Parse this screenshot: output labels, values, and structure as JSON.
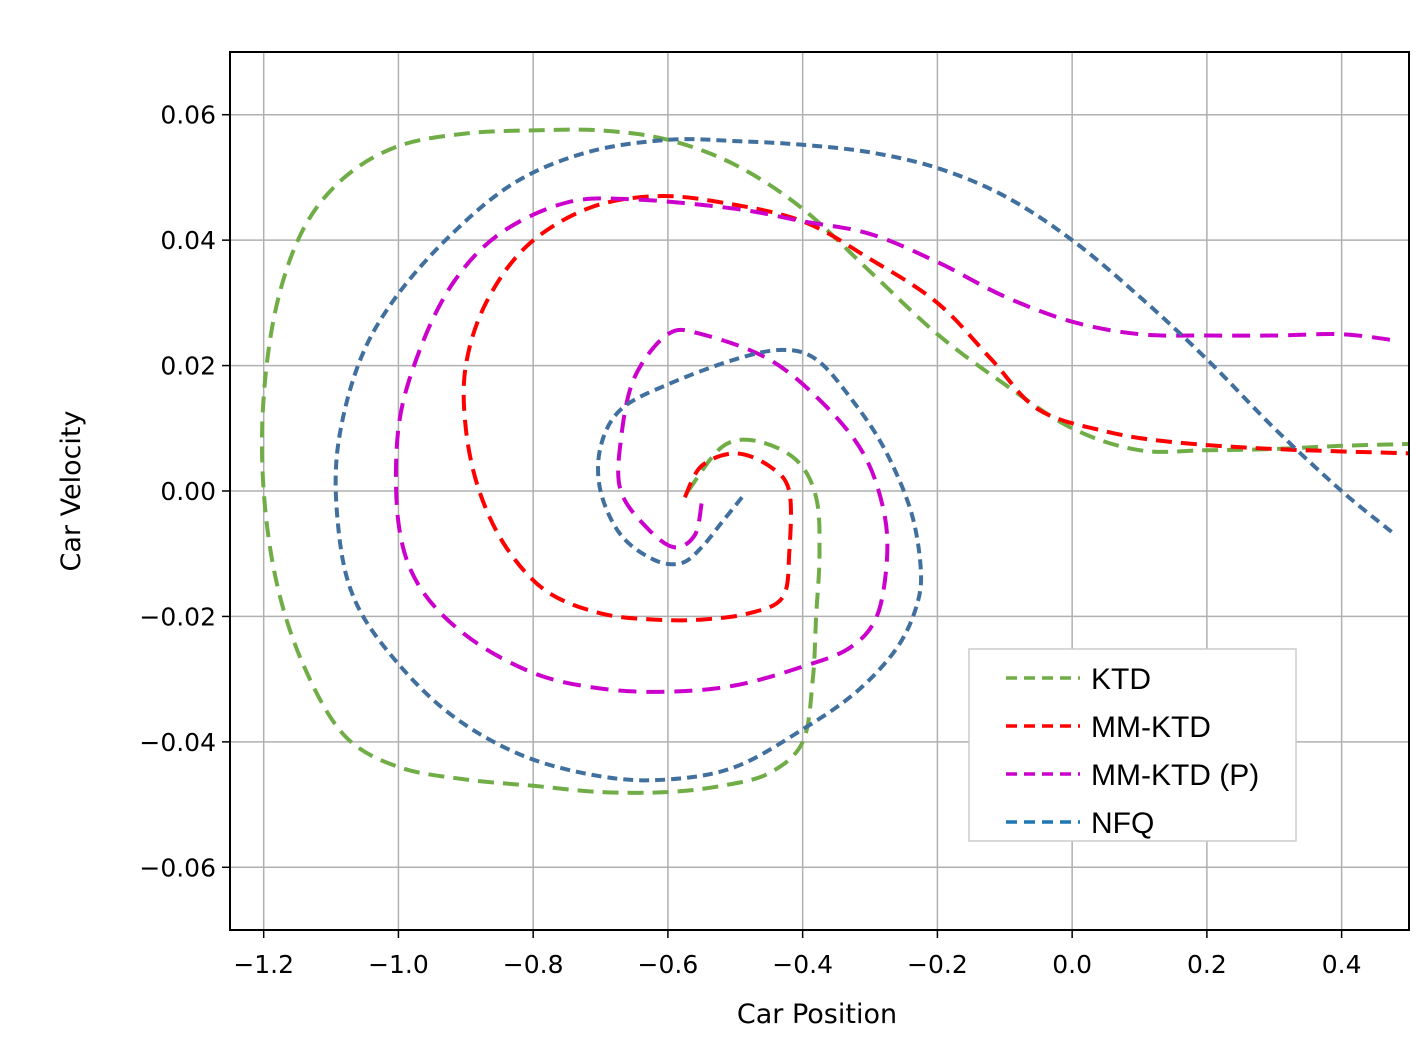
{
  "chart_data": {
    "type": "line",
    "title": "",
    "xlabel": "Car Position",
    "ylabel": "Car Velocity",
    "xlim": [
      -1.25,
      0.5
    ],
    "ylim": [
      -0.07,
      0.07
    ],
    "grid": true,
    "legend_position": "bottom-right",
    "xticks": [
      -1.2,
      -1.0,
      -0.8,
      -0.6,
      -0.4,
      -0.2,
      0.0,
      0.2,
      0.4
    ],
    "xtick_labels": [
      "−1.2",
      "−1.0",
      "−0.8",
      "−0.6",
      "−0.4",
      "−0.2",
      "0.0",
      "0.2",
      "0.4"
    ],
    "yticks": [
      0.06,
      0.04,
      0.02,
      0.0,
      -0.02,
      -0.04,
      -0.06
    ],
    "ytick_labels": [
      "0.06",
      "0.04",
      "0.02",
      "0.00",
      "−0.02",
      "−0.04",
      "−0.06"
    ],
    "series": [
      {
        "name": "KTD",
        "color": "#70ad47",
        "style": "dashed",
        "points": [
          [
            -0.57,
            0.0
          ],
          [
            -0.52,
            0.007
          ],
          [
            -0.47,
            0.008
          ],
          [
            -0.41,
            0.005
          ],
          [
            -0.38,
            -0.001
          ],
          [
            -0.375,
            -0.01
          ],
          [
            -0.38,
            -0.02
          ],
          [
            -0.385,
            -0.03
          ],
          [
            -0.4,
            -0.04
          ],
          [
            -0.45,
            -0.045
          ],
          [
            -0.52,
            -0.047
          ],
          [
            -0.6,
            -0.048
          ],
          [
            -0.7,
            -0.048
          ],
          [
            -0.8,
            -0.047
          ],
          [
            -0.9,
            -0.046
          ],
          [
            -1.0,
            -0.044
          ],
          [
            -1.08,
            -0.039
          ],
          [
            -1.14,
            -0.028
          ],
          [
            -1.18,
            -0.015
          ],
          [
            -1.2,
            0.0
          ],
          [
            -1.2,
            0.015
          ],
          [
            -1.18,
            0.03
          ],
          [
            -1.14,
            0.042
          ],
          [
            -1.08,
            0.05
          ],
          [
            -1.0,
            0.055
          ],
          [
            -0.9,
            0.057
          ],
          [
            -0.8,
            0.0575
          ],
          [
            -0.7,
            0.0575
          ],
          [
            -0.6,
            0.056
          ],
          [
            -0.5,
            0.052
          ],
          [
            -0.4,
            0.045
          ],
          [
            -0.3,
            0.035
          ],
          [
            -0.2,
            0.025
          ],
          [
            -0.1,
            0.017
          ],
          [
            0.0,
            0.01
          ],
          [
            0.1,
            0.0065
          ],
          [
            0.2,
            0.0065
          ],
          [
            0.3,
            0.0067
          ],
          [
            0.4,
            0.0072
          ],
          [
            0.5,
            0.0075
          ]
        ]
      },
      {
        "name": "MM-KTD",
        "color": "#ff0000",
        "style": "dashed",
        "points": [
          [
            -0.575,
            -0.001
          ],
          [
            -0.55,
            0.004
          ],
          [
            -0.5,
            0.006
          ],
          [
            -0.45,
            0.004
          ],
          [
            -0.42,
            0.0
          ],
          [
            -0.42,
            -0.01
          ],
          [
            -0.43,
            -0.017
          ],
          [
            -0.48,
            -0.0195
          ],
          [
            -0.55,
            -0.0205
          ],
          [
            -0.62,
            -0.0205
          ],
          [
            -0.7,
            -0.0195
          ],
          [
            -0.78,
            -0.016
          ],
          [
            -0.84,
            -0.009
          ],
          [
            -0.88,
            0.0
          ],
          [
            -0.9,
            0.01
          ],
          [
            -0.9,
            0.02
          ],
          [
            -0.87,
            0.03
          ],
          [
            -0.81,
            0.039
          ],
          [
            -0.72,
            0.045
          ],
          [
            -0.62,
            0.047
          ],
          [
            -0.52,
            0.046
          ],
          [
            -0.4,
            0.043
          ],
          [
            -0.3,
            0.037
          ],
          [
            -0.2,
            0.03
          ],
          [
            -0.12,
            0.021
          ],
          [
            -0.05,
            0.013
          ],
          [
            0.05,
            0.0095
          ],
          [
            0.15,
            0.0078
          ],
          [
            0.3,
            0.0067
          ],
          [
            0.5,
            0.006
          ]
        ]
      },
      {
        "name": "MM-KTD (P)",
        "color": "#cc00cc",
        "style": "dashed",
        "points": [
          [
            -0.55,
            -0.002
          ],
          [
            -0.56,
            -0.007
          ],
          [
            -0.59,
            -0.009
          ],
          [
            -0.63,
            -0.006
          ],
          [
            -0.67,
            0.0
          ],
          [
            -0.67,
            0.008
          ],
          [
            -0.65,
            0.018
          ],
          [
            -0.6,
            0.025
          ],
          [
            -0.55,
            0.025
          ],
          [
            -0.45,
            0.021
          ],
          [
            -0.37,
            0.014
          ],
          [
            -0.31,
            0.006
          ],
          [
            -0.28,
            -0.003
          ],
          [
            -0.275,
            -0.011
          ],
          [
            -0.29,
            -0.02
          ],
          [
            -0.33,
            -0.025
          ],
          [
            -0.4,
            -0.028
          ],
          [
            -0.5,
            -0.031
          ],
          [
            -0.6,
            -0.032
          ],
          [
            -0.7,
            -0.0315
          ],
          [
            -0.8,
            -0.029
          ],
          [
            -0.9,
            -0.023
          ],
          [
            -0.97,
            -0.015
          ],
          [
            -1.0,
            -0.005
          ],
          [
            -1.0,
            0.01
          ],
          [
            -0.97,
            0.022
          ],
          [
            -0.92,
            0.033
          ],
          [
            -0.85,
            0.041
          ],
          [
            -0.75,
            0.046
          ],
          [
            -0.65,
            0.0465
          ],
          [
            -0.5,
            0.045
          ],
          [
            -0.4,
            0.043
          ],
          [
            -0.3,
            0.041
          ],
          [
            -0.2,
            0.0365
          ],
          [
            -0.1,
            0.031
          ],
          [
            0.0,
            0.027
          ],
          [
            0.1,
            0.025
          ],
          [
            0.2,
            0.0248
          ],
          [
            0.3,
            0.0248
          ],
          [
            0.4,
            0.025
          ],
          [
            0.48,
            0.024
          ]
        ]
      },
      {
        "name": "NFQ",
        "color": "#41709e",
        "style": "dashed",
        "points": [
          [
            -0.49,
            -0.001
          ],
          [
            -0.52,
            -0.005
          ],
          [
            -0.55,
            -0.009
          ],
          [
            -0.58,
            -0.0115
          ],
          [
            -0.62,
            -0.011
          ],
          [
            -0.67,
            -0.007
          ],
          [
            -0.7,
            0.0
          ],
          [
            -0.7,
            0.007
          ],
          [
            -0.67,
            0.013
          ],
          [
            -0.6,
            0.017
          ],
          [
            -0.5,
            0.021
          ],
          [
            -0.43,
            0.0225
          ],
          [
            -0.38,
            0.021
          ],
          [
            -0.33,
            0.015
          ],
          [
            -0.28,
            0.007
          ],
          [
            -0.24,
            -0.003
          ],
          [
            -0.225,
            -0.012
          ],
          [
            -0.23,
            -0.018
          ],
          [
            -0.26,
            -0.025
          ],
          [
            -0.32,
            -0.032
          ],
          [
            -0.4,
            -0.038
          ],
          [
            -0.5,
            -0.044
          ],
          [
            -0.6,
            -0.046
          ],
          [
            -0.7,
            -0.0455
          ],
          [
            -0.82,
            -0.042
          ],
          [
            -0.93,
            -0.035
          ],
          [
            -1.02,
            -0.025
          ],
          [
            -1.07,
            -0.016
          ],
          [
            -1.09,
            -0.005
          ],
          [
            -1.09,
            0.007
          ],
          [
            -1.06,
            0.02
          ],
          [
            -1.01,
            0.03
          ],
          [
            -0.93,
            0.04
          ],
          [
            -0.83,
            0.049
          ],
          [
            -0.72,
            0.054
          ],
          [
            -0.6,
            0.056
          ],
          [
            -0.5,
            0.0558
          ],
          [
            -0.4,
            0.0552
          ],
          [
            -0.3,
            0.054
          ],
          [
            -0.2,
            0.0515
          ],
          [
            -0.1,
            0.047
          ],
          [
            0.0,
            0.04
          ],
          [
            0.1,
            0.031
          ],
          [
            0.2,
            0.021
          ],
          [
            0.3,
            0.01
          ],
          [
            0.4,
            0.0
          ],
          [
            0.48,
            -0.007
          ]
        ]
      }
    ]
  }
}
